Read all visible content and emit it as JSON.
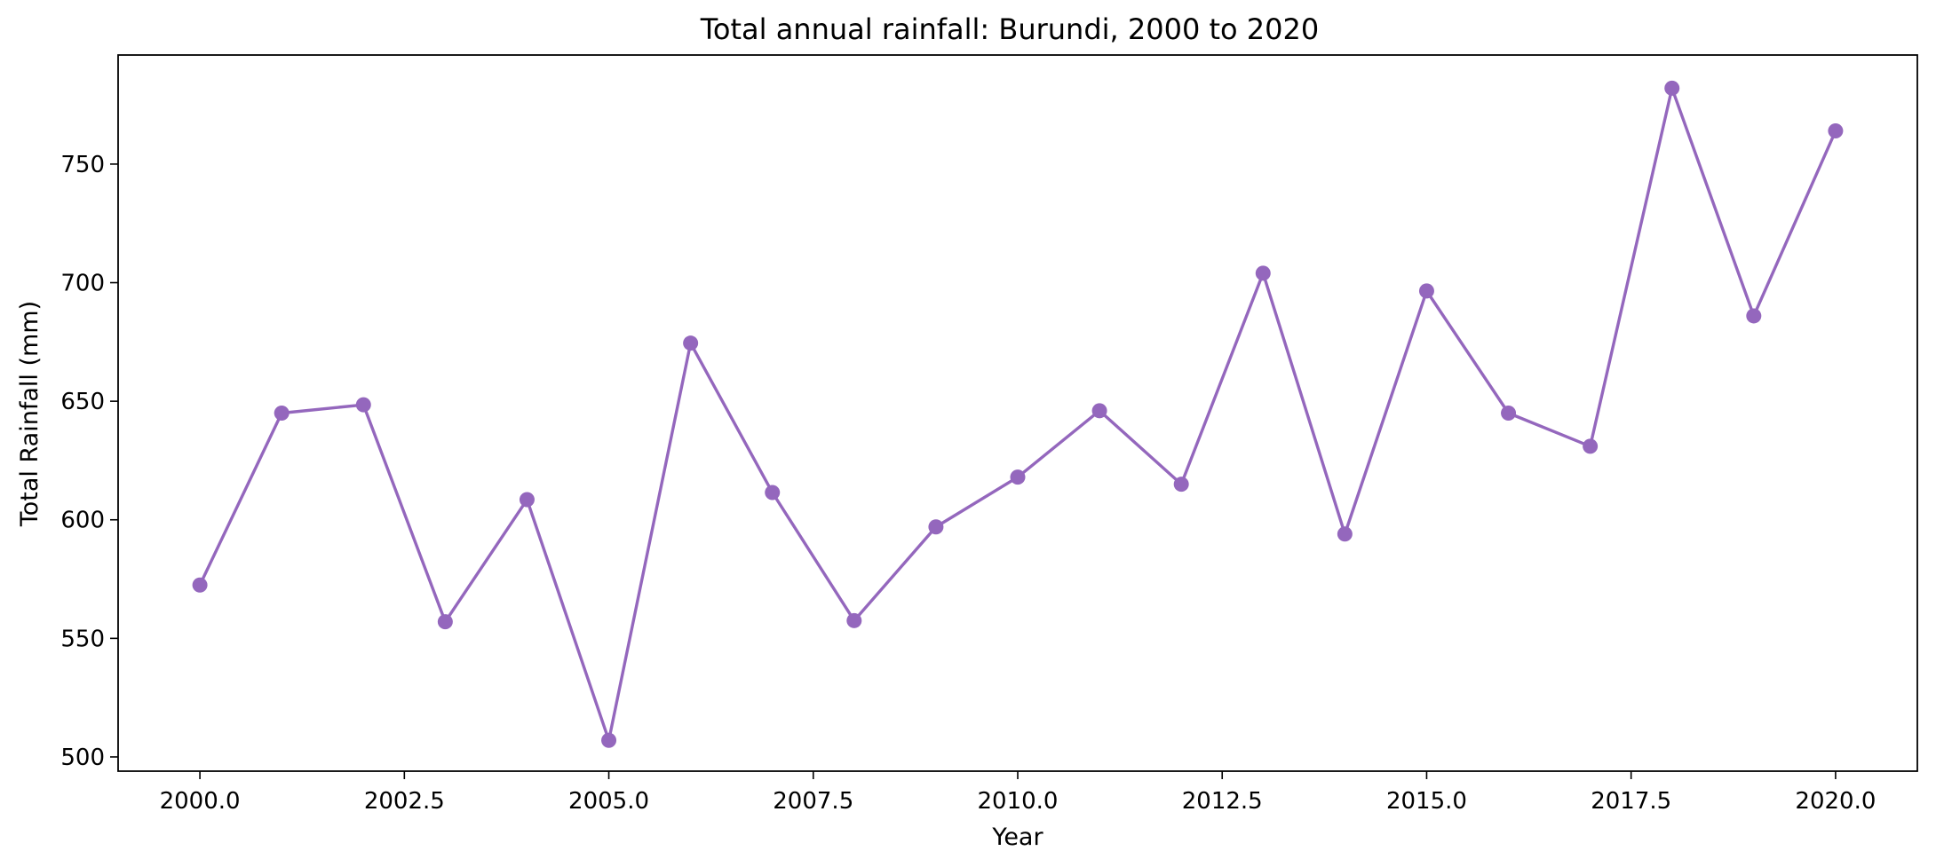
{
  "chart_data": {
    "type": "line",
    "title": "Total annual rainfall: Burundi, 2000 to 2020",
    "xlabel": "Year",
    "ylabel": "Total Rainfall (mm)",
    "x": [
      2000,
      2001,
      2002,
      2003,
      2004,
      2005,
      2006,
      2007,
      2008,
      2009,
      2010,
      2011,
      2012,
      2013,
      2014,
      2015,
      2016,
      2017,
      2018,
      2019,
      2020
    ],
    "series": [
      {
        "values": [
          572.5,
          645,
          648.5,
          557,
          608.5,
          507,
          674.5,
          611.5,
          557.5,
          597,
          618,
          646,
          615,
          704,
          594,
          696.5,
          645,
          631,
          782,
          686,
          764
        ],
        "color": "#9467bd",
        "marker": "circle"
      }
    ],
    "xlim": [
      1999,
      2021
    ],
    "ylim": [
      494,
      796
    ],
    "xticks": [
      2000,
      2002.5,
      2005,
      2007.5,
      2010,
      2012.5,
      2015,
      2017.5,
      2020
    ],
    "xtick_labels": [
      "2000.0",
      "2002.5",
      "2005.0",
      "2007.5",
      "2010.0",
      "2012.5",
      "2015.0",
      "2017.5",
      "2020.0"
    ],
    "yticks": [
      500,
      550,
      600,
      650,
      700,
      750
    ],
    "ytick_labels": [
      "500",
      "550",
      "600",
      "650",
      "700",
      "750"
    ],
    "grid": false,
    "legend": false
  }
}
